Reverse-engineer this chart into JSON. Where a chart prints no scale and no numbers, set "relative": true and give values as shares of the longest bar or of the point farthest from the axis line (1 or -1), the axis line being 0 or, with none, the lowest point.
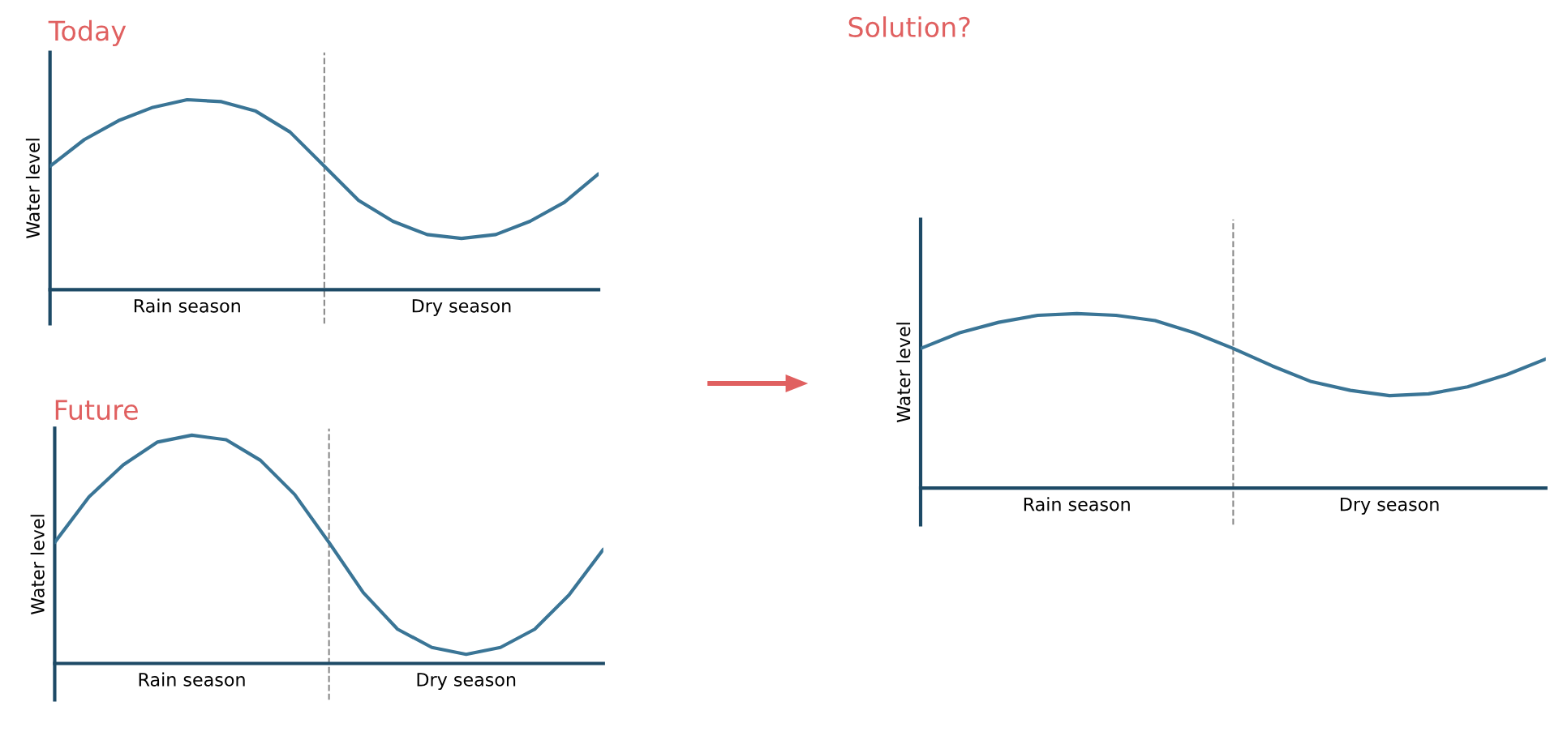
{
  "chart_data": [
    {
      "type": "line",
      "title": "Today",
      "ylabel": "Water level",
      "relative": true,
      "tick_labels": "x",
      "legend": false,
      "marker": "none",
      "line_style": "solid",
      "categories": [
        null,
        null,
        null,
        null,
        "Rain season",
        null,
        null,
        null,
        null,
        null,
        null,
        null,
        "Dry season",
        null,
        null,
        null,
        null
      ],
      "series": [
        {
          "color": "#3a7596",
          "values": [
            0.65,
            0.79,
            0.89,
            0.96,
            1.0,
            0.99,
            0.94,
            0.83,
            0.65,
            0.47,
            0.36,
            0.29,
            0.27,
            0.29,
            0.36,
            0.46,
            0.61
          ]
        }
      ]
    },
    {
      "type": "line",
      "title": "Future",
      "ylabel": "Water level",
      "relative": true,
      "tick_labels": "x",
      "legend": false,
      "marker": "none",
      "line_style": "solid",
      "categories": [
        null,
        null,
        null,
        null,
        "Rain season",
        null,
        null,
        null,
        null,
        null,
        null,
        null,
        "Dry season",
        null,
        null,
        null,
        null
      ],
      "series": [
        {
          "color": "#3a7596",
          "values": [
            0.53,
            0.73,
            0.87,
            0.97,
            1.0,
            0.98,
            0.89,
            0.74,
            0.53,
            0.31,
            0.15,
            0.07,
            0.04,
            0.07,
            0.15,
            0.3,
            0.5
          ]
        }
      ]
    },
    {
      "type": "line",
      "title": "Solution?",
      "ylabel": "Water level",
      "relative": true,
      "tick_labels": "x",
      "legend": false,
      "marker": "none",
      "line_style": "solid",
      "categories": [
        null,
        null,
        null,
        null,
        "Rain season",
        null,
        null,
        null,
        null,
        null,
        null,
        null,
        "Dry season",
        null,
        null,
        null,
        null
      ],
      "series": [
        {
          "color": "#3a7596",
          "values": [
            0.8,
            0.89,
            0.95,
            0.99,
            1.0,
            0.99,
            0.96,
            0.89,
            0.8,
            0.7,
            0.61,
            0.56,
            0.53,
            0.54,
            0.58,
            0.65,
            0.74
          ]
        }
      ]
    }
  ]
}
